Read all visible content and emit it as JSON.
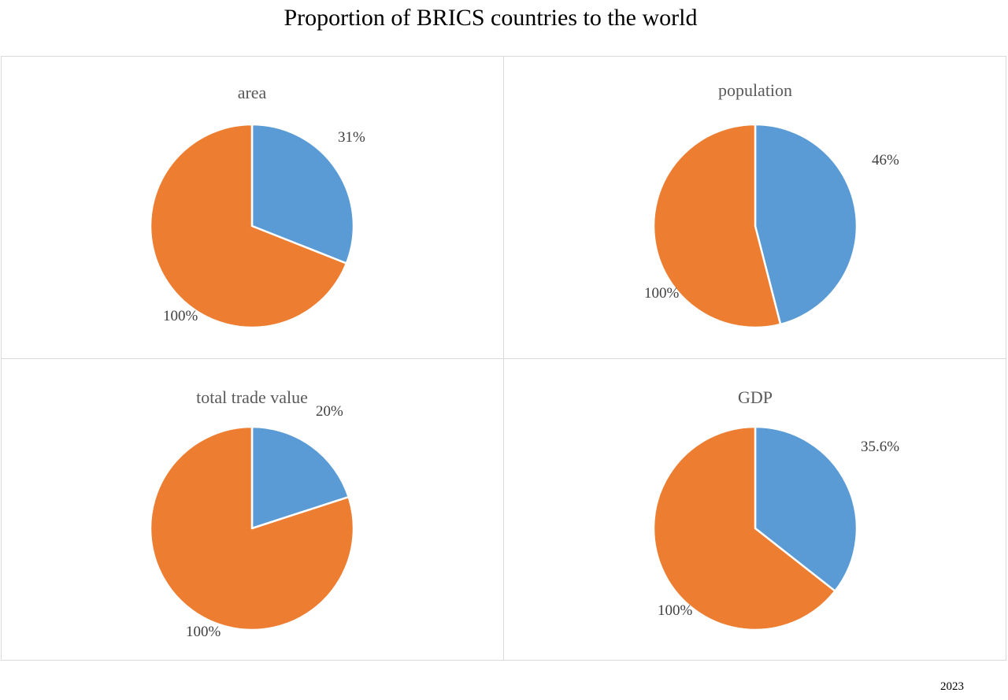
{
  "title": "Proportion of BRICS countries to the world",
  "year": "2023",
  "colors": {
    "brics": "#5b9bd5",
    "rest": "#ed7d31",
    "border": "#d9d9d9"
  },
  "chart_data": [
    {
      "type": "pie",
      "title": "area",
      "slices": [
        {
          "label": "31%",
          "value": 31,
          "color": "#5b9bd5"
        },
        {
          "label": "100%",
          "value": 100,
          "color": "#ed7d31"
        }
      ]
    },
    {
      "type": "pie",
      "title": "population",
      "slices": [
        {
          "label": "46%",
          "value": 46,
          "color": "#5b9bd5"
        },
        {
          "label": "100%",
          "value": 100,
          "color": "#ed7d31"
        }
      ]
    },
    {
      "type": "pie",
      "title": "total trade value",
      "slices": [
        {
          "label": "20%",
          "value": 20,
          "color": "#5b9bd5"
        },
        {
          "label": "100%",
          "value": 100,
          "color": "#ed7d31"
        }
      ]
    },
    {
      "type": "pie",
      "title": "GDP",
      "slices": [
        {
          "label": "35.6%",
          "value": 35.6,
          "color": "#5b9bd5"
        },
        {
          "label": "100%",
          "value": 100,
          "color": "#ed7d31"
        }
      ]
    }
  ]
}
